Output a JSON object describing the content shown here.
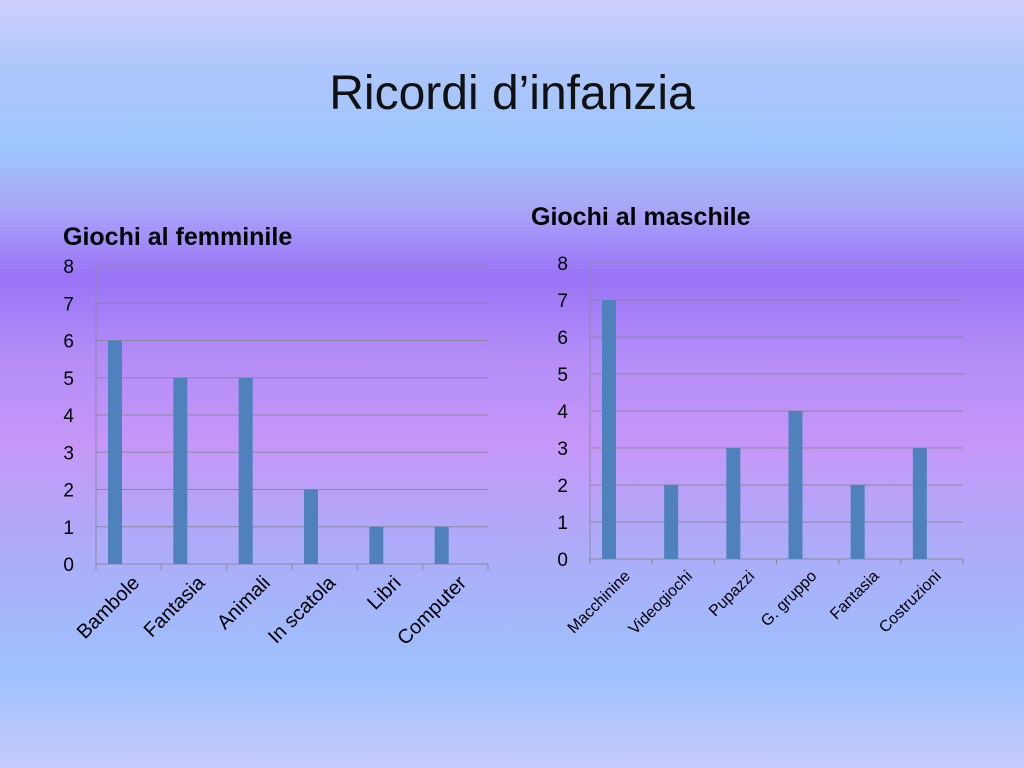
{
  "slide": {
    "title": "Ricordi d’infanzia"
  },
  "chart_data": [
    {
      "type": "bar",
      "title": "Giochi al femminile",
      "categories": [
        "Bambole",
        "Fantasia",
        "Animali",
        "In scatola",
        "Libri",
        "Computer"
      ],
      "values": [
        6,
        5,
        5,
        2,
        1,
        1
      ],
      "ylim": [
        0,
        8
      ],
      "yticks": [
        0,
        1,
        2,
        3,
        4,
        5,
        6,
        7,
        8
      ],
      "grid": true,
      "bar_color": "#4f81bd"
    },
    {
      "type": "bar",
      "title": "Giochi al maschile",
      "categories": [
        "Macchinine",
        "Videogiochi",
        "Pupazzi",
        "G. gruppo",
        "Fantasia",
        "Costruzioni"
      ],
      "values": [
        7,
        2,
        3,
        4,
        2,
        3
      ],
      "ylim": [
        0,
        8
      ],
      "yticks": [
        0,
        1,
        2,
        3,
        4,
        5,
        6,
        7,
        8
      ],
      "grid": true,
      "bar_color": "#4f81bd"
    }
  ]
}
